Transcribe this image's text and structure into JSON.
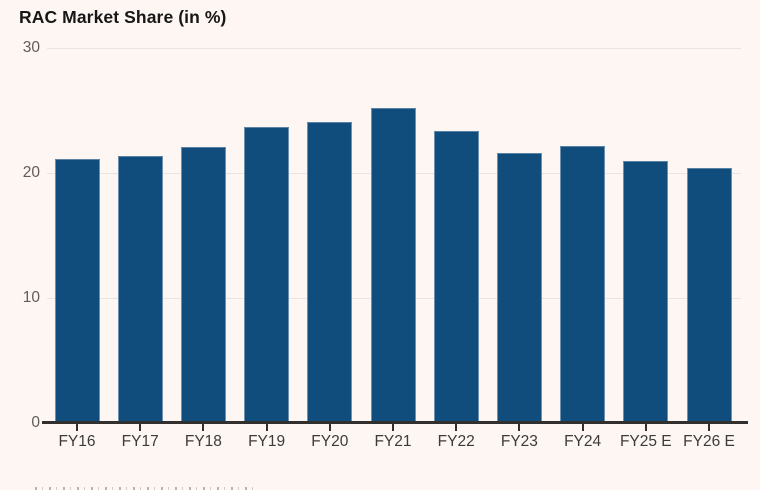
{
  "title": "RAC Market Share (in %)",
  "chart_data": {
    "type": "bar",
    "title": "RAC Market Share (in %)",
    "categories": [
      "FY16",
      "FY17",
      "FY18",
      "FY19",
      "FY20",
      "FY21",
      "FY22",
      "FY23",
      "FY24",
      "FY25 E",
      "FY26 E"
    ],
    "values": [
      21.1,
      21.4,
      22.1,
      23.7,
      24.1,
      25.2,
      23.4,
      21.6,
      22.2,
      21.0,
      20.4
    ],
    "xlabel": "",
    "ylabel": "",
    "ylim": [
      0,
      30
    ],
    "yticks": [
      0,
      10,
      20,
      30
    ],
    "grid": true,
    "legend": "none",
    "bar_color": "#114d7c",
    "background_color": "#fdf6f2",
    "axis_color": "#32302e",
    "gridline_color": "#e8e4e1"
  }
}
